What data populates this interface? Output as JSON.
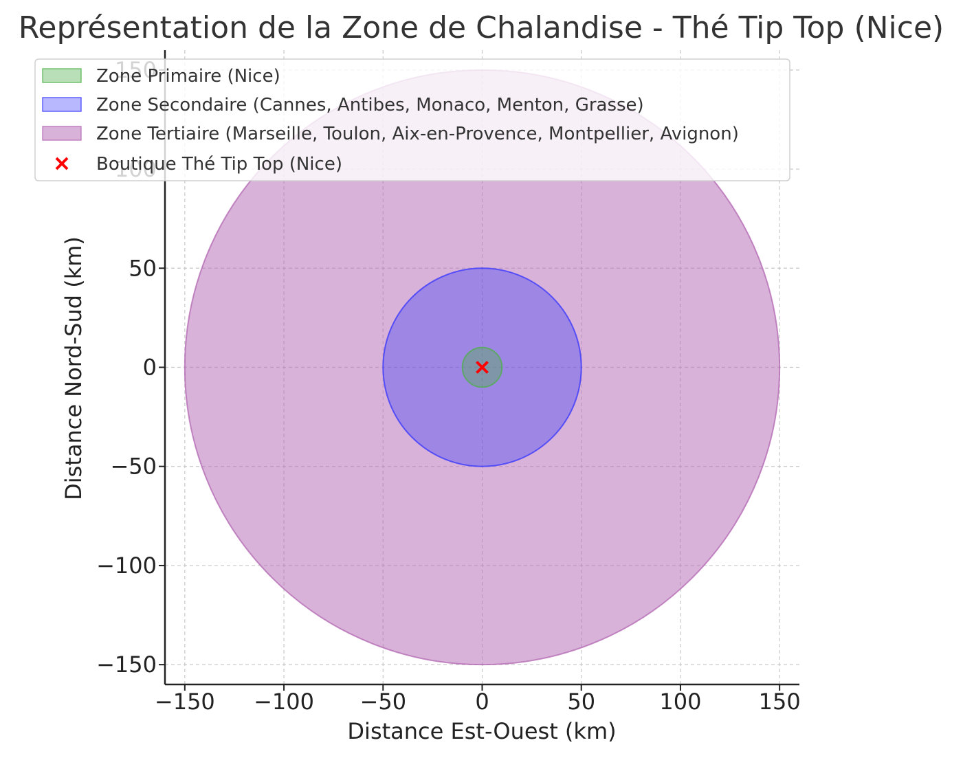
{
  "chart_data": {
    "type": "scatter",
    "title": "Représentation de la Zone de Chalandise - Thé Tip Top (Nice)",
    "xlabel": "Distance Est-Ouest (km)",
    "ylabel": "Distance Nord-Sud (km)",
    "xlim": [
      -160,
      160
    ],
    "ylim": [
      -160,
      160
    ],
    "xticks": [
      -150,
      -100,
      -50,
      0,
      50,
      100,
      150
    ],
    "yticks": [
      -150,
      -100,
      -50,
      0,
      50,
      100,
      150
    ],
    "xtick_labels": [
      "−150",
      "−100",
      "−50",
      "0",
      "50",
      "100",
      "150"
    ],
    "ytick_labels": [
      "−150",
      "−100",
      "−50",
      "0",
      "50",
      "100",
      "150"
    ],
    "grid": true,
    "legend_position": "top-left",
    "zones": [
      {
        "name": "Zone Primaire (Nice)",
        "center": [
          0,
          0
        ],
        "radius": 10,
        "color": "#4daf4a",
        "fill_opacity": 0.4
      },
      {
        "name": "Zone Secondaire (Cannes, Antibes, Monaco, Menton, Grasse)",
        "center": [
          0,
          0
        ],
        "radius": 50,
        "color": "#3333ff",
        "fill_opacity": 0.35
      },
      {
        "name": "Zone Tertiaire (Marseille, Toulon, Aix-en-Provence, Montpellier, Avignon)",
        "center": [
          0,
          0
        ],
        "radius": 150,
        "color": "#b266b2",
        "fill_opacity": 0.5
      }
    ],
    "points": [
      {
        "name": "Boutique Thé Tip Top (Nice)",
        "x": 0,
        "y": 0,
        "marker": "x",
        "color": "#ff0000"
      }
    ]
  }
}
